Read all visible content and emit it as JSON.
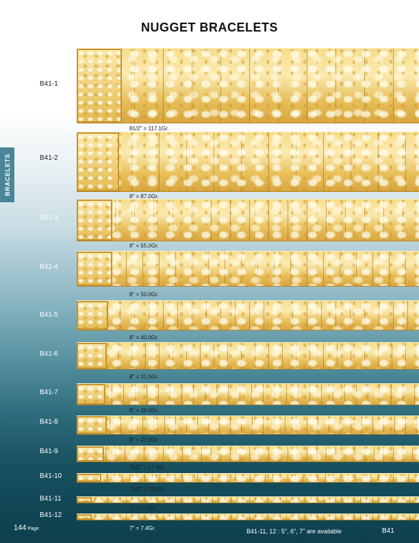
{
  "title": "NUGGET BRACELETS",
  "side_tab": "BRACELETS",
  "items": [
    {
      "code": "B41-1",
      "weight": "81/2\" = 117.1Gr."
    },
    {
      "code": "B41-2",
      "weight": "8\" = 87.0Gr."
    },
    {
      "code": "B41-3",
      "weight": "8\" = 55.0Gr."
    },
    {
      "code": "B41-4",
      "weight": "8\" = 50.0Gr."
    },
    {
      "code": "B41-5",
      "weight": "8\" = 40.0Gr."
    },
    {
      "code": "B41-6",
      "weight": "8\" = 31.5Gr."
    },
    {
      "code": "B41-7",
      "weight": "8\" = 26.0Gr."
    },
    {
      "code": "B41-8",
      "weight": "8\" = 21.0Gr."
    },
    {
      "code": "B41-9",
      "weight": "71/2\" = 17.3Gr."
    },
    {
      "code": "B41-10",
      "weight": "71/2\" = 11.5Gr."
    },
    {
      "code": "B41-11",
      "weight": "7\" = 7.1Gr."
    },
    {
      "code": "B41-12",
      "weight": "7\" = 7.4Gr."
    }
  ],
  "footer": {
    "page_number": "144",
    "page_label": "Page",
    "availability": "B41-11, 12 : 5\", 6\", 7\" are available",
    "section_code": "B41"
  }
}
